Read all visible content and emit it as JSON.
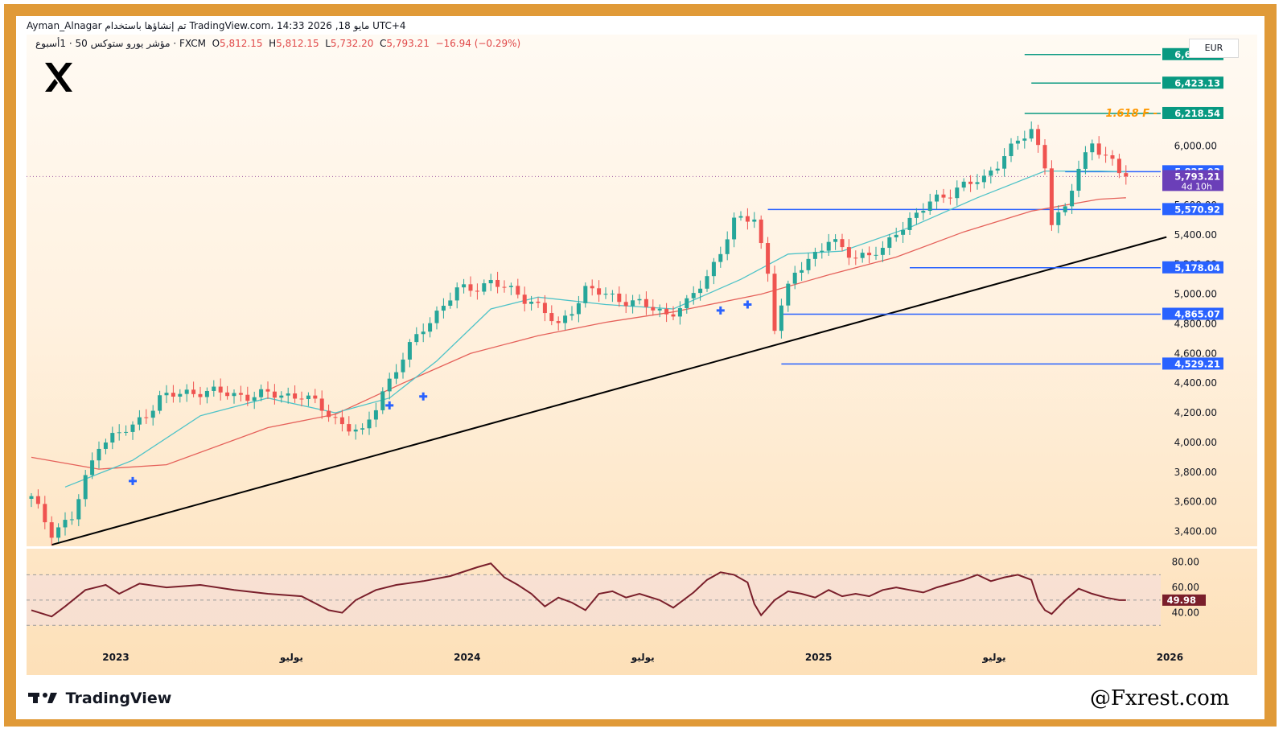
{
  "header": {
    "line1": "Ayman_Alnagar تم إنشاؤها باستخدام TradingView.com، 14:33 2026 ,18 مايو UTC+4",
    "symbol": "مؤشر يورو ستوكس 50 · 1أسبوع · FXCM",
    "open_label": "O",
    "open": "5,812.15",
    "high_label": "H",
    "high": "5,812.15",
    "low_label": "L",
    "low": "5,732.20",
    "close_label": "C",
    "close": "5,793.21",
    "change": "−16.94 (−0.29%)",
    "currency": "EUR"
  },
  "footer": {
    "brand": "TradingView",
    "handle": "@Fxrest.com"
  },
  "logo": {
    "icon": "x-logo-icon"
  },
  "colors": {
    "up": "#26a69a",
    "down": "#ef5350",
    "level": "#2962ff",
    "fib": "#089981",
    "ema_fast": "#4fc3c8",
    "ema_slow": "#e5615a",
    "rsi": "#7a1f2b",
    "trend": "#000000",
    "fib_label": "#ff9800",
    "countdown": "#6b3fb8"
  },
  "chart_data": {
    "type": "candlestick",
    "timeframe": "1W",
    "ylim": [
      3300,
      6750
    ],
    "y_ticks": [
      "3,400.00",
      "3,600.00",
      "3,800.00",
      "4,000.00",
      "4,200.00",
      "4,400.00",
      "4,600.00",
      "4,800.00",
      "5,000.00",
      "5,200.00",
      "5,400.00",
      "5,600.00",
      "6,000.00"
    ],
    "x_ticks": [
      "2023",
      "يوليو",
      "2024",
      "يوليو",
      "2025",
      "يوليو",
      "2026",
      "يوليو"
    ],
    "x_tick_weeks": [
      12.5,
      38.5,
      64.5,
      90.5,
      116.5,
      142.5,
      168.5,
      194.5
    ],
    "price_path": [
      [
        0,
        3620
      ],
      [
        3,
        3400
      ],
      [
        6,
        3490
      ],
      [
        10,
        4000
      ],
      [
        15,
        4100
      ],
      [
        19,
        4300
      ],
      [
        25,
        4350
      ],
      [
        30,
        4320
      ],
      [
        40,
        4320
      ],
      [
        46,
        4130
      ],
      [
        49,
        4050
      ],
      [
        52,
        4350
      ],
      [
        58,
        4780
      ],
      [
        63,
        5020
      ],
      [
        68,
        5080
      ],
      [
        74,
        4960
      ],
      [
        78,
        4780
      ],
      [
        82,
        5030
      ],
      [
        88,
        4960
      ],
      [
        94,
        4870
      ],
      [
        97,
        4930
      ],
      [
        100,
        5120
      ],
      [
        104,
        5480
      ],
      [
        107,
        5520
      ],
      [
        109,
        5150
      ],
      [
        110,
        4780
      ],
      [
        113,
        5150
      ],
      [
        116,
        5280
      ],
      [
        118,
        5350
      ],
      [
        122,
        5260
      ],
      [
        126,
        5280
      ],
      [
        128,
        5430
      ],
      [
        133,
        5610
      ],
      [
        137,
        5720
      ],
      [
        141,
        5770
      ],
      [
        144,
        5950
      ],
      [
        146,
        6020
      ],
      [
        148,
        6100
      ],
      [
        150,
        5880
      ],
      [
        151,
        5500
      ],
      [
        153,
        5560
      ],
      [
        155,
        5850
      ],
      [
        157,
        6030
      ],
      [
        159,
        5930
      ],
      [
        161,
        5810
      ],
      [
        162,
        5795
      ]
    ],
    "ema_fast": [
      [
        5,
        3700
      ],
      [
        15,
        3880
      ],
      [
        25,
        4180
      ],
      [
        35,
        4300
      ],
      [
        45,
        4200
      ],
      [
        53,
        4300
      ],
      [
        60,
        4550
      ],
      [
        68,
        4900
      ],
      [
        75,
        4980
      ],
      [
        85,
        4930
      ],
      [
        95,
        4900
      ],
      [
        105,
        5100
      ],
      [
        112,
        5270
      ],
      [
        120,
        5290
      ],
      [
        130,
        5450
      ],
      [
        140,
        5650
      ],
      [
        150,
        5830
      ],
      [
        158,
        5830
      ],
      [
        162,
        5825
      ]
    ],
    "ema_slow": [
      [
        0,
        3900
      ],
      [
        10,
        3820
      ],
      [
        20,
        3850
      ],
      [
        35,
        4100
      ],
      [
        45,
        4190
      ],
      [
        55,
        4400
      ],
      [
        65,
        4600
      ],
      [
        75,
        4720
      ],
      [
        85,
        4810
      ],
      [
        95,
        4880
      ],
      [
        108,
        5000
      ],
      [
        118,
        5130
      ],
      [
        128,
        5250
      ],
      [
        138,
        5420
      ],
      [
        148,
        5560
      ],
      [
        158,
        5640
      ],
      [
        162,
        5650
      ]
    ],
    "price_levels": [
      {
        "label": "6,615.64",
        "value": 6615.64,
        "kind": "fib",
        "start_week": 147
      },
      {
        "label": "6,423.13",
        "value": 6423.13,
        "kind": "fib",
        "start_week": 148
      },
      {
        "label": "6,218.54",
        "value": 6218.54,
        "kind": "fib",
        "start_week": 147
      },
      {
        "label": "5,825.93",
        "value": 5825.93,
        "kind": "level",
        "start_week": 153
      },
      {
        "label": "5,570.92",
        "value": 5570.92,
        "kind": "level",
        "start_week": 109
      },
      {
        "label": "5,178.04",
        "value": 5178.04,
        "kind": "level",
        "start_week": 130
      },
      {
        "label": "4,865.07",
        "value": 4865.07,
        "kind": "level",
        "start_week": 111
      },
      {
        "label": "4,529.21",
        "value": 4529.21,
        "kind": "level",
        "start_week": 111
      }
    ],
    "fib_annotation": "1.618 F",
    "last_price": {
      "label": "5,793.21",
      "value": 5793.21,
      "countdown": "4d 10h"
    },
    "trendline": {
      "from": [
        3,
        3310
      ],
      "to": [
        168,
        5385
      ]
    },
    "cross_markers": [
      [
        15,
        3740
      ],
      [
        53,
        4250
      ],
      [
        58,
        4310
      ],
      [
        102,
        4890
      ],
      [
        106,
        4930
      ]
    ],
    "rsi": {
      "ylim": [
        20,
        90
      ],
      "ticks": [
        "80.00",
        "60.00",
        "40.00"
      ],
      "levels": [
        70,
        50,
        30
      ],
      "last": "49.98",
      "path": [
        [
          0,
          42
        ],
        [
          3,
          37
        ],
        [
          5,
          45
        ],
        [
          8,
          58
        ],
        [
          11,
          62
        ],
        [
          13,
          55
        ],
        [
          16,
          63
        ],
        [
          20,
          60
        ],
        [
          25,
          62
        ],
        [
          30,
          58
        ],
        [
          35,
          55
        ],
        [
          40,
          53
        ],
        [
          44,
          42
        ],
        [
          46,
          40
        ],
        [
          48,
          50
        ],
        [
          51,
          58
        ],
        [
          54,
          62
        ],
        [
          58,
          65
        ],
        [
          62,
          69
        ],
        [
          66,
          76
        ],
        [
          68,
          79
        ],
        [
          70,
          68
        ],
        [
          72,
          62
        ],
        [
          74,
          55
        ],
        [
          76,
          45
        ],
        [
          78,
          52
        ],
        [
          80,
          48
        ],
        [
          82,
          42
        ],
        [
          84,
          55
        ],
        [
          86,
          57
        ],
        [
          88,
          52
        ],
        [
          90,
          55
        ],
        [
          93,
          50
        ],
        [
          95,
          44
        ],
        [
          98,
          56
        ],
        [
          100,
          66
        ],
        [
          102,
          72
        ],
        [
          104,
          70
        ],
        [
          106,
          64
        ],
        [
          107,
          47
        ],
        [
          108,
          38
        ],
        [
          110,
          50
        ],
        [
          112,
          57
        ],
        [
          114,
          55
        ],
        [
          116,
          52
        ],
        [
          118,
          58
        ],
        [
          120,
          53
        ],
        [
          122,
          55
        ],
        [
          124,
          53
        ],
        [
          126,
          58
        ],
        [
          128,
          60
        ],
        [
          130,
          58
        ],
        [
          132,
          56
        ],
        [
          134,
          60
        ],
        [
          136,
          63
        ],
        [
          138,
          66
        ],
        [
          140,
          70
        ],
        [
          142,
          65
        ],
        [
          144,
          68
        ],
        [
          146,
          70
        ],
        [
          148,
          66
        ],
        [
          149,
          50
        ],
        [
          150,
          42
        ],
        [
          151,
          39
        ],
        [
          153,
          50
        ],
        [
          155,
          59
        ],
        [
          157,
          55
        ],
        [
          159,
          52
        ],
        [
          161,
          50
        ],
        [
          162,
          49.98
        ]
      ]
    }
  }
}
